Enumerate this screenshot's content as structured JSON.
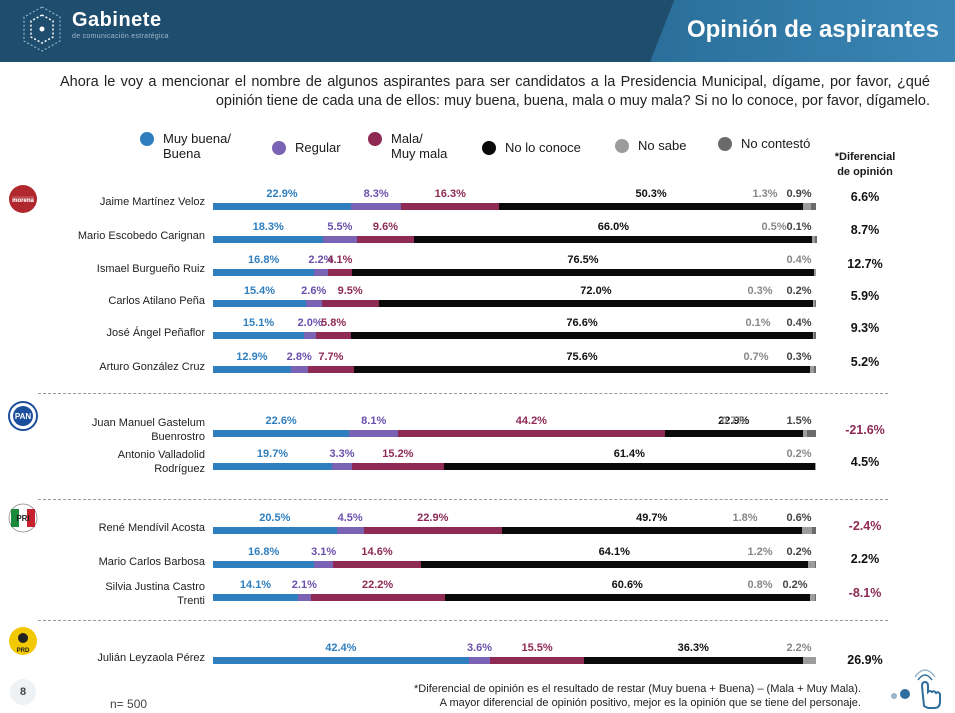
{
  "header": {
    "brand": "Gabinete",
    "brand_sub": "de comunicación estratégica",
    "title": "Opinión de aspirantes"
  },
  "question": "Ahora le voy a mencionar el nombre de algunos aspirantes para ser candidatos a la Presidencia Municipal, dígame, por favor, ¿qué opinión tiene de cada una de ellos: muy buena, buena, mala o muy mala? Si no lo conoce, por favor, dígamelo.",
  "legend": [
    {
      "line1": "Muy buena/",
      "line2": "Buena",
      "color": "#2f7fbf"
    },
    {
      "line1": "Regular",
      "line2": "",
      "color": "#7a62b4"
    },
    {
      "line1": "Mala/",
      "line2": "Muy mala",
      "color": "#8e2a54"
    },
    {
      "line1": "No lo conoce",
      "line2": "",
      "color": "#0a0a0a"
    },
    {
      "line1": "No sabe",
      "line2": "",
      "color": "#9c9c9c"
    },
    {
      "line1": "No contestó",
      "line2": "",
      "color": "#6b6b6b"
    }
  ],
  "diff_header": {
    "line1": "*Diferencial",
    "line2": "de opinión"
  },
  "parties": [
    {
      "name": "morena",
      "logo_text": "morena",
      "color": "#b0282e"
    },
    {
      "name": "PAN",
      "logo_text": "PAN",
      "color": "#1c4f9c"
    },
    {
      "name": "PRI",
      "logo_text": "PRI",
      "color": "#1a8a3c"
    },
    {
      "name": "PRD",
      "logo_text": "PRD",
      "color": "#f2c800"
    }
  ],
  "chart_data": {
    "type": "bar",
    "stacked": true,
    "orientation": "horizontal",
    "unit": "%",
    "series_names": [
      "Muy buena/Buena",
      "Regular",
      "Mala/Muy mala",
      "No lo conoce",
      "No sabe",
      "No contestó"
    ],
    "rows": [
      {
        "party": "morena",
        "name1": "Jaime Martínez Veloz",
        "name2": "",
        "values": [
          22.9,
          8.3,
          16.3,
          50.3,
          1.3,
          0.9
        ],
        "labels": [
          "22.9%",
          "8.3%",
          "16.3%",
          "50.3%",
          "1.3%",
          "0.9%"
        ],
        "diff": "6.6%",
        "diff_sign": "pos"
      },
      {
        "party": "morena",
        "name1": "Mario Escobedo Carignan",
        "name2": "",
        "values": [
          18.3,
          5.5,
          9.6,
          66.0,
          0.5,
          0.1
        ],
        "labels": [
          "18.3%",
          "5.5%",
          "9.6%",
          "66.0%",
          "0.5%",
          "0.1%"
        ],
        "diff": "8.7%",
        "diff_sign": "pos"
      },
      {
        "party": "morena",
        "name1": "Ismael Burgueño Ruiz",
        "name2": "",
        "values": [
          16.8,
          2.2,
          4.1,
          76.5,
          0.4,
          0
        ],
        "labels": [
          "16.8%",
          "2.2%",
          "4.1%",
          "76.5%",
          "0.4%",
          ""
        ],
        "diff": "12.7%",
        "diff_sign": "pos"
      },
      {
        "party": "morena",
        "name1": "Carlos Atilano Peña",
        "name2": "",
        "values": [
          15.4,
          2.6,
          9.5,
          72.0,
          0.3,
          0.2
        ],
        "labels": [
          "15.4%",
          "2.6%",
          "9.5%",
          "72.0%",
          "0.3%",
          "0.2%"
        ],
        "diff": "5.9%",
        "diff_sign": "pos"
      },
      {
        "party": "morena",
        "name1": "José Ángel Peñaflor",
        "name2": "",
        "values": [
          15.1,
          2.0,
          5.8,
          76.6,
          0.1,
          0.4
        ],
        "labels": [
          "15.1%",
          "2.0%",
          "5.8%",
          "76.6%",
          "0.1%",
          "0.4%"
        ],
        "diff": "9.3%",
        "diff_sign": "pos"
      },
      {
        "party": "morena",
        "name1": "Arturo González Cruz",
        "name2": "",
        "values": [
          12.9,
          2.8,
          7.7,
          75.6,
          0.7,
          0.3
        ],
        "labels": [
          "12.9%",
          "2.8%",
          "7.7%",
          "75.6%",
          "0.7%",
          "0.3%"
        ],
        "diff": "5.2%",
        "diff_sign": "pos"
      },
      {
        "party": "PAN",
        "name1": "Juan Manuel Gastelum",
        "name2": "Buenrostro",
        "values": [
          22.6,
          8.1,
          44.2,
          22.9,
          0.7,
          1.5
        ],
        "labels": [
          "22.6%",
          "8.1%",
          "44.2%",
          "22.9%",
          "0.7%",
          "1.5%"
        ],
        "diff": "-21.6%",
        "diff_sign": "neg"
      },
      {
        "party": "PAN",
        "name1": "Antonio Valladolid",
        "name2": "Rodríguez",
        "values": [
          19.7,
          3.3,
          15.2,
          61.4,
          0.2,
          0
        ],
        "labels": [
          "19.7%",
          "3.3%",
          "15.2%",
          "61.4%",
          "0.2%",
          ""
        ],
        "diff": "4.5%",
        "diff_sign": "pos"
      },
      {
        "party": "PRI",
        "name1": "René Mendívil Acosta",
        "name2": "",
        "values": [
          20.5,
          4.5,
          22.9,
          49.7,
          1.8,
          0.6
        ],
        "labels": [
          "20.5%",
          "4.5%",
          "22.9%",
          "49.7%",
          "1.8%",
          "0.6%"
        ],
        "diff": "-2.4%",
        "diff_sign": "neg"
      },
      {
        "party": "PRI",
        "name1": "Mario Carlos Barbosa",
        "name2": "",
        "values": [
          16.8,
          3.1,
          14.6,
          64.1,
          1.2,
          0.2
        ],
        "labels": [
          "16.8%",
          "3.1%",
          "14.6%",
          "64.1%",
          "1.2%",
          "0.2%"
        ],
        "diff": "2.2%",
        "diff_sign": "pos"
      },
      {
        "party": "PRI",
        "name1": "Silvia Justina Castro",
        "name2": "Trenti",
        "values": [
          14.1,
          2.1,
          22.2,
          60.6,
          0.8,
          0.2
        ],
        "labels": [
          "14.1%",
          "2.1%",
          "22.2%",
          "60.6%",
          "0.8%",
          "0.2%"
        ],
        "diff": "-8.1%",
        "diff_sign": "neg"
      },
      {
        "party": "PRD",
        "name1": "Julián Leyzaola Pérez",
        "name2": "",
        "values": [
          42.4,
          3.6,
          15.5,
          36.3,
          2.2,
          0
        ],
        "labels": [
          "42.4%",
          "3.6%",
          "15.5%",
          "36.3%",
          "2.2%",
          ""
        ],
        "diff": "26.9%",
        "diff_sign": "pos"
      }
    ]
  },
  "colors": {
    "positive": "#111111",
    "negative": "#8e2a54"
  },
  "footer": {
    "page_number": "8",
    "sample": "n= 500",
    "note_line1": "*Diferencial de opinión es el resultado de restar (Muy buena + Buena) – (Mala + Muy Mala).",
    "note_line2": "A mayor diferencial de opinión positivo, mejor es la opinión que se tiene del personaje."
  }
}
